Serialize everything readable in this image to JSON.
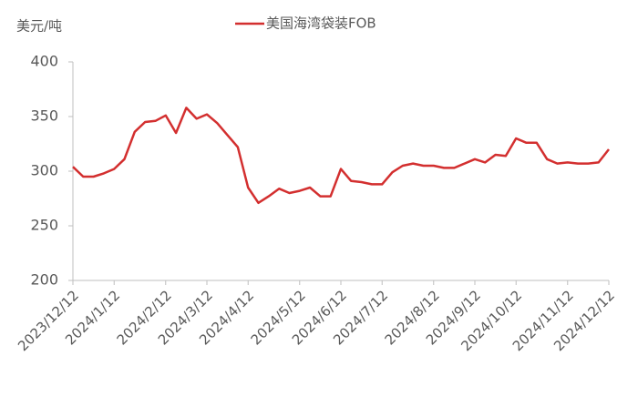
{
  "chart_data": {
    "type": "line",
    "y_label": "美元/吨",
    "categories": [
      "2023/12/12",
      null,
      null,
      null,
      "2024/1/12",
      null,
      null,
      null,
      null,
      "2024/2/12",
      null,
      null,
      null,
      "2024/3/12",
      null,
      null,
      null,
      "2024/4/12",
      null,
      null,
      null,
      null,
      "2024/5/12",
      null,
      null,
      null,
      "2024/6/12",
      null,
      null,
      null,
      "2024/7/12",
      null,
      null,
      null,
      null,
      "2024/8/12",
      null,
      null,
      null,
      "2024/9/12",
      null,
      null,
      null,
      "2024/10/12",
      null,
      null,
      null,
      null,
      "2024/11/12",
      null,
      null,
      null,
      "2024/12/12"
    ],
    "series": [
      {
        "name": "美国海湾袋装FOB",
        "color": "#d32f2f",
        "values": [
          304,
          295,
          295,
          298,
          302,
          311,
          336,
          345,
          346,
          351,
          335,
          358,
          348,
          352,
          344,
          333,
          322,
          285,
          271,
          277,
          284,
          280,
          282,
          285,
          277,
          277,
          302,
          291,
          290,
          288,
          288,
          299,
          305,
          307,
          305,
          305,
          303,
          303,
          307,
          311,
          308,
          315,
          314,
          330,
          326,
          326,
          311,
          307,
          308,
          307,
          307,
          308,
          320
        ]
      }
    ],
    "ylim": [
      200,
      400
    ],
    "yticks": [
      200,
      250,
      300,
      350,
      400
    ],
    "grid": false,
    "legend": "top"
  }
}
